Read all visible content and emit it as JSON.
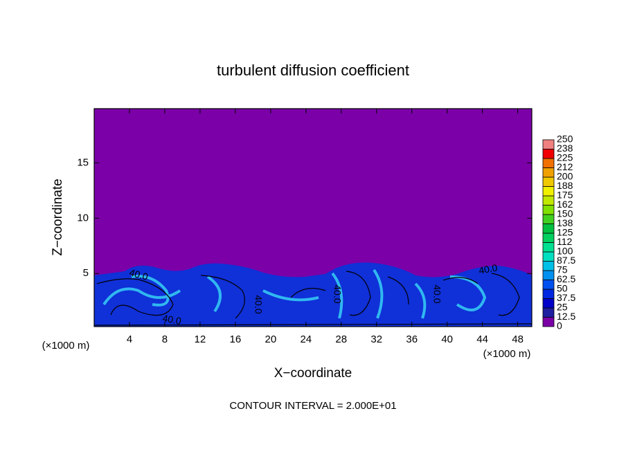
{
  "chart_data": {
    "type": "contour",
    "title": "turbulent diffusion coefficient",
    "x_label": "X−coordinate",
    "y_label": "Z−coordinate",
    "x_unit": "(×1000 m)",
    "x_unit_right": "(×1000 m)",
    "footnote": "CONTOUR INTERVAL = 2.000E+01",
    "xlim": [
      0,
      49.6
    ],
    "xticks": [
      4,
      8,
      12,
      16,
      20,
      24,
      28,
      32,
      36,
      40,
      44,
      48
    ],
    "ylim": [
      0.2,
      19.9
    ],
    "yticks": [
      5,
      10,
      15
    ],
    "contour_labels": [
      "40.0",
      "40.0",
      "40.0",
      "40.0",
      "40.0",
      "40.0"
    ],
    "colorbar": {
      "ticks": [
        0,
        12.5,
        25,
        37.5,
        50,
        62.5,
        75,
        87.5,
        100,
        112,
        125,
        138,
        150,
        162,
        175,
        188,
        200,
        212,
        225,
        238,
        250
      ],
      "colors": [
        "#7a00a6",
        "#1e1ea0",
        "#0000c8",
        "#0028e0",
        "#0050f0",
        "#0090f0",
        "#00c0e8",
        "#00e0c0",
        "#00e090",
        "#00d060",
        "#00c040",
        "#40d020",
        "#80e000",
        "#c0e800",
        "#f0f000",
        "#f0c800",
        "#f0a000",
        "#f07000",
        "#f00000",
        "#f08080"
      ]
    }
  }
}
